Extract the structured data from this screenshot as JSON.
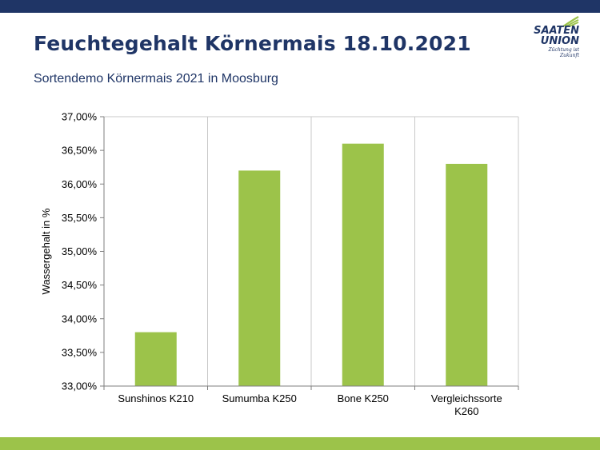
{
  "slide": {
    "title": "Feuchtegehalt Körnermais 18.10.2021",
    "subtitle": "Sortendemo Körnermais 2021 in Moosburg"
  },
  "logo": {
    "line1": "SAATEN",
    "line2": "UNION",
    "tagline": "Züchtung ist Zukunft"
  },
  "colors": {
    "bar": "#9cc34a",
    "title": "#1f3566",
    "band_top": "#1f3566",
    "band_bottom": "#9cc34a",
    "grid": "#c8c8c8"
  },
  "chart_data": {
    "type": "bar",
    "categories": [
      "Sunshinos K210",
      "Sumumba K250",
      "Bone K250",
      "Vergleichssorte K260"
    ],
    "values": [
      33.8,
      36.2,
      36.6,
      36.3
    ],
    "ylabel": "Wassergehalt in %",
    "ylim": [
      33,
      37
    ],
    "yticks": [
      "33,00%",
      "33,50%",
      "34,00%",
      "34,50%",
      "35,00%",
      "35,50%",
      "36,00%",
      "36,50%",
      "37,00%"
    ],
    "grid": "vertical",
    "legend": "none"
  }
}
